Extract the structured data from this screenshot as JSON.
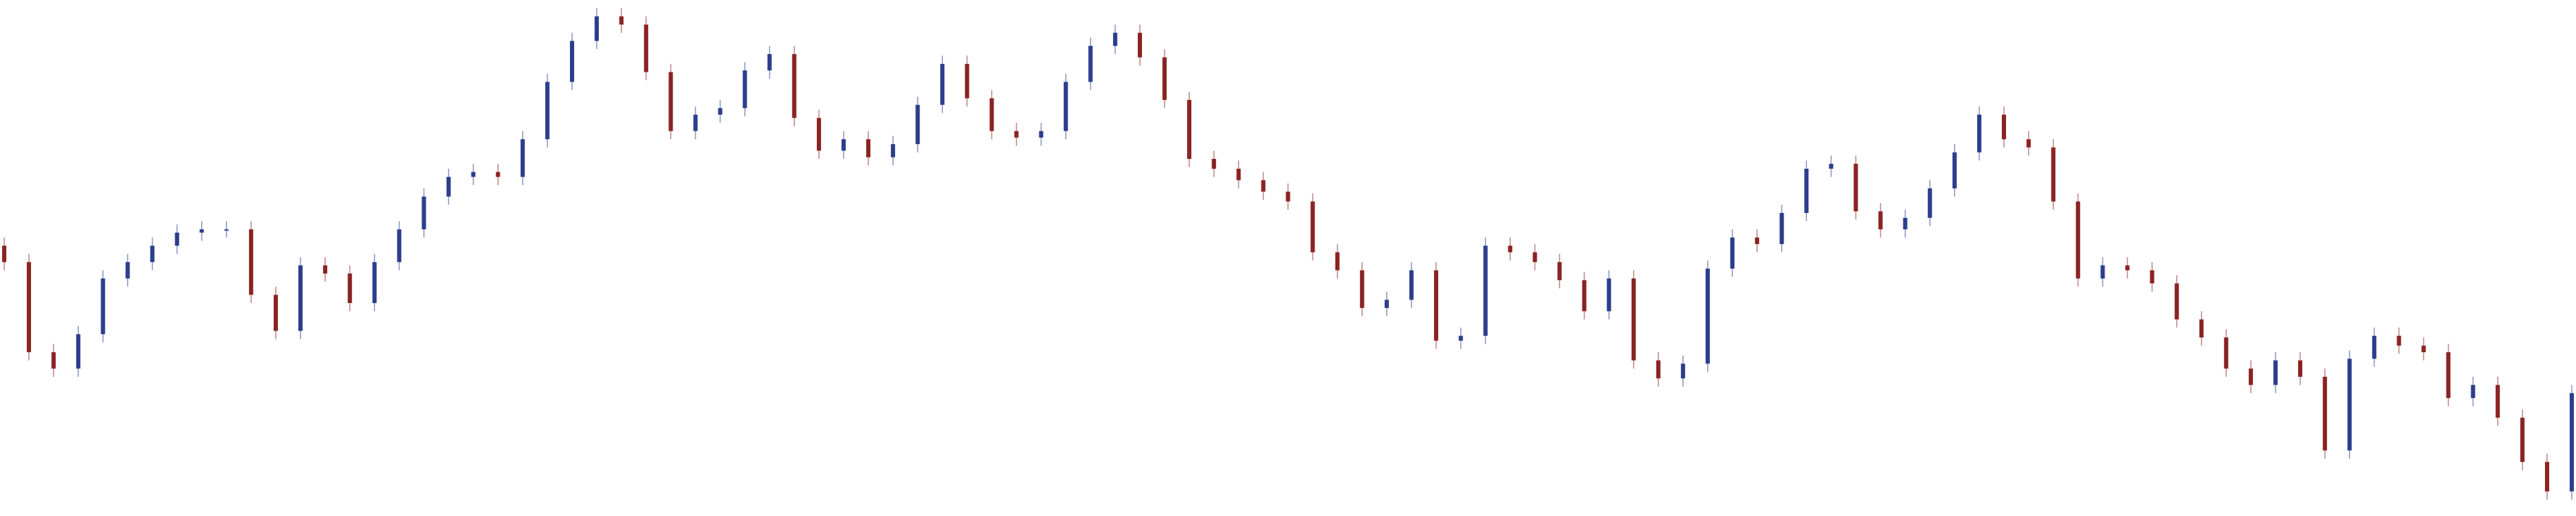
{
  "chart_data": {
    "type": "candlestick",
    "up_color": "#2c3e8c",
    "down_color": "#8b2323",
    "ylim": [
      0,
      315
    ],
    "open": [
      165,
      155,
      100,
      90,
      111,
      145,
      155,
      165,
      173,
      175,
      175,
      135,
      113,
      153,
      148,
      130,
      155,
      175,
      195,
      207,
      210,
      207,
      230,
      265,
      290,
      305,
      300,
      271,
      235,
      245,
      249,
      272,
      282,
      243,
      223,
      230,
      219,
      227,
      251,
      276,
      255,
      235,
      231,
      235,
      265,
      287,
      295,
      280,
      254,
      218,
      212,
      205,
      198,
      192,
      161,
      150,
      127,
      132,
      150,
      107,
      110,
      165,
      161,
      155,
      144,
      125,
      145,
      95,
      84,
      93,
      151,
      170,
      166,
      185,
      212,
      215,
      186,
      175,
      182,
      200,
      222,
      245,
      230,
      225,
      192,
      145,
      153,
      150,
      142,
      120,
      109,
      90,
      80,
      95,
      85,
      40,
      96,
      110,
      104,
      100,
      72,
      80,
      60,
      33,
      15
    ],
    "high": [
      170,
      160,
      105,
      116,
      150,
      160,
      170,
      178,
      180,
      180,
      180,
      140,
      158,
      158,
      153,
      160,
      180,
      200,
      212,
      215,
      215,
      235,
      270,
      295,
      310,
      310,
      305,
      276,
      250,
      254,
      277,
      287,
      287,
      248,
      235,
      235,
      232,
      256,
      281,
      281,
      260,
      240,
      240,
      270,
      292,
      300,
      300,
      285,
      259,
      223,
      217,
      210,
      203,
      197,
      166,
      155,
      137,
      155,
      155,
      115,
      170,
      170,
      166,
      160,
      149,
      150,
      150,
      100,
      98,
      156,
      175,
      175,
      190,
      217,
      220,
      220,
      191,
      187,
      205,
      227,
      250,
      250,
      235,
      230,
      197,
      158,
      158,
      155,
      147,
      125,
      114,
      95,
      100,
      100,
      90,
      101,
      115,
      115,
      109,
      105,
      85,
      85,
      65,
      38,
      80
    ],
    "low": [
      150,
      95,
      85,
      85,
      106,
      140,
      150,
      160,
      168,
      170,
      130,
      108,
      108,
      143,
      125,
      125,
      150,
      170,
      190,
      202,
      202,
      202,
      225,
      260,
      285,
      295,
      266,
      230,
      230,
      240,
      244,
      267,
      238,
      218,
      218,
      214,
      214,
      222,
      246,
      250,
      230,
      226,
      226,
      230,
      260,
      282,
      275,
      249,
      213,
      207,
      200,
      193,
      187,
      156,
      145,
      122,
      122,
      127,
      102,
      102,
      105,
      156,
      150,
      139,
      120,
      120,
      90,
      79,
      79,
      88,
      146,
      161,
      161,
      180,
      207,
      181,
      170,
      170,
      177,
      195,
      217,
      225,
      220,
      187,
      140,
      140,
      145,
      137,
      115,
      104,
      85,
      75,
      75,
      80,
      35,
      35,
      91,
      99,
      95,
      67,
      67,
      55,
      28,
      10,
      10
    ],
    "close": [
      155,
      100,
      90,
      111,
      145,
      155,
      165,
      173,
      175,
      175,
      135,
      113,
      153,
      148,
      130,
      155,
      175,
      195,
      207,
      210,
      207,
      230,
      265,
      290,
      305,
      300,
      271,
      235,
      245,
      249,
      272,
      282,
      243,
      223,
      230,
      219,
      227,
      251,
      276,
      255,
      235,
      231,
      235,
      265,
      287,
      295,
      280,
      254,
      218,
      212,
      205,
      198,
      192,
      161,
      150,
      127,
      132,
      150,
      107,
      110,
      165,
      161,
      155,
      144,
      125,
      145,
      95,
      84,
      93,
      151,
      170,
      166,
      185,
      212,
      215,
      186,
      175,
      182,
      200,
      222,
      245,
      230,
      225,
      192,
      145,
      153,
      150,
      142,
      120,
      109,
      90,
      80,
      95,
      85,
      40,
      96,
      110,
      104,
      100,
      72,
      80,
      60,
      33,
      15,
      75
    ]
  }
}
